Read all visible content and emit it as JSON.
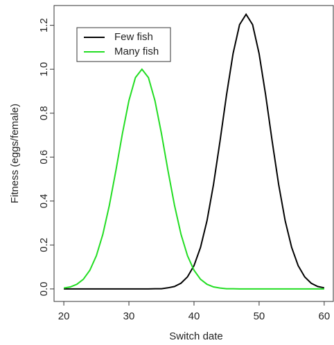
{
  "chart_data": {
    "type": "line",
    "x_label": "Switch date",
    "y_label": "Fitness (eggs/female)",
    "x": [
      20,
      21,
      22,
      23,
      24,
      25,
      26,
      27,
      28,
      29,
      30,
      31,
      32,
      33,
      34,
      35,
      36,
      37,
      38,
      39,
      40,
      41,
      42,
      43,
      44,
      45,
      46,
      47,
      48,
      49,
      50,
      51,
      52,
      53,
      54,
      55,
      56,
      57,
      58,
      59,
      60
    ],
    "series": [
      {
        "name": "Few fish",
        "color": "#000000",
        "values": [
          0,
          0,
          0,
          0,
          0,
          0,
          0,
          0,
          0,
          0,
          0,
          0,
          0,
          0,
          0.001,
          0.001,
          0.005,
          0.011,
          0.026,
          0.055,
          0.106,
          0.189,
          0.311,
          0.476,
          0.674,
          0.884,
          1.071,
          1.203,
          1.25,
          1.203,
          1.071,
          0.884,
          0.674,
          0.476,
          0.311,
          0.189,
          0.106,
          0.055,
          0.026,
          0.011,
          0.005
        ]
      },
      {
        "name": "Many fish",
        "color": "#22dd22",
        "values": [
          0.004,
          0.009,
          0.021,
          0.044,
          0.085,
          0.151,
          0.249,
          0.381,
          0.539,
          0.707,
          0.857,
          0.962,
          1,
          0.962,
          0.857,
          0.707,
          0.539,
          0.381,
          0.249,
          0.151,
          0.085,
          0.044,
          0.021,
          0.009,
          0.004,
          0.001,
          0.001,
          0,
          0,
          0,
          0,
          0,
          0,
          0,
          0,
          0,
          0,
          0,
          0,
          0,
          0
        ]
      }
    ],
    "xlim": [
      18.5,
      61.4
    ],
    "ylim": [
      -0.057,
      1.29
    ],
    "xticks": [
      20,
      30,
      40,
      50,
      60
    ],
    "yticks": [
      {
        "value": 0,
        "label": "0.0"
      },
      0.2,
      0.4,
      0.6,
      0.8,
      {
        "value": 1,
        "label": "1.0"
      },
      1.2
    ],
    "legend": "top-left"
  }
}
